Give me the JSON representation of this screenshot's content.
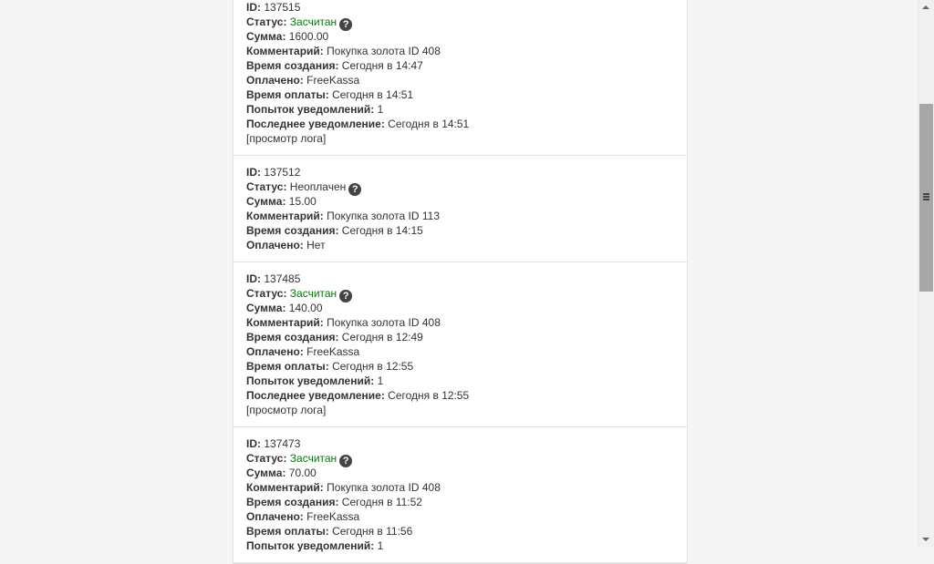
{
  "labels": {
    "id": "ID:",
    "status": "Статус:",
    "sum": "Сумма:",
    "comment": "Комментарий:",
    "created": "Время создания:",
    "paid": "Оплачено:",
    "paid_time": "Время оплаты:",
    "attempts": "Попыток уведомлений:",
    "last_notify": "Последнее уведомление:",
    "log_link": "[просмотр лога]"
  },
  "colors": {
    "status_credited": "#008000"
  },
  "payments": [
    {
      "id": "137515",
      "status": "Засчитан",
      "credited": true,
      "sum": "1600.00",
      "comment": "Покупка золота ID 408",
      "created": "Сегодня в 14:47",
      "paid": "FreeKassa",
      "paid_time": "Сегодня в 14:51",
      "attempts": "1",
      "last_notify": "Сегодня в 14:51"
    },
    {
      "id": "137512",
      "status": "Неоплачен",
      "credited": false,
      "sum": "15.00",
      "comment": "Покупка золота ID 113",
      "created": "Сегодня в 14:15",
      "paid": "Нет"
    },
    {
      "id": "137485",
      "status": "Засчитан",
      "credited": true,
      "sum": "140.00",
      "comment": "Покупка золота ID 408",
      "created": "Сегодня в 12:49",
      "paid": "FreeKassa",
      "paid_time": "Сегодня в 12:55",
      "attempts": "1",
      "last_notify": "Сегодня в 12:55"
    },
    {
      "id": "137473",
      "status": "Засчитан",
      "credited": true,
      "sum": "70.00",
      "comment": "Покупка золота ID 408",
      "created": "Сегодня в 11:52",
      "paid": "FreeKassa",
      "paid_time": "Сегодня в 11:56",
      "attempts": "1"
    }
  ],
  "scrollbar": {
    "position_percent": 20
  }
}
